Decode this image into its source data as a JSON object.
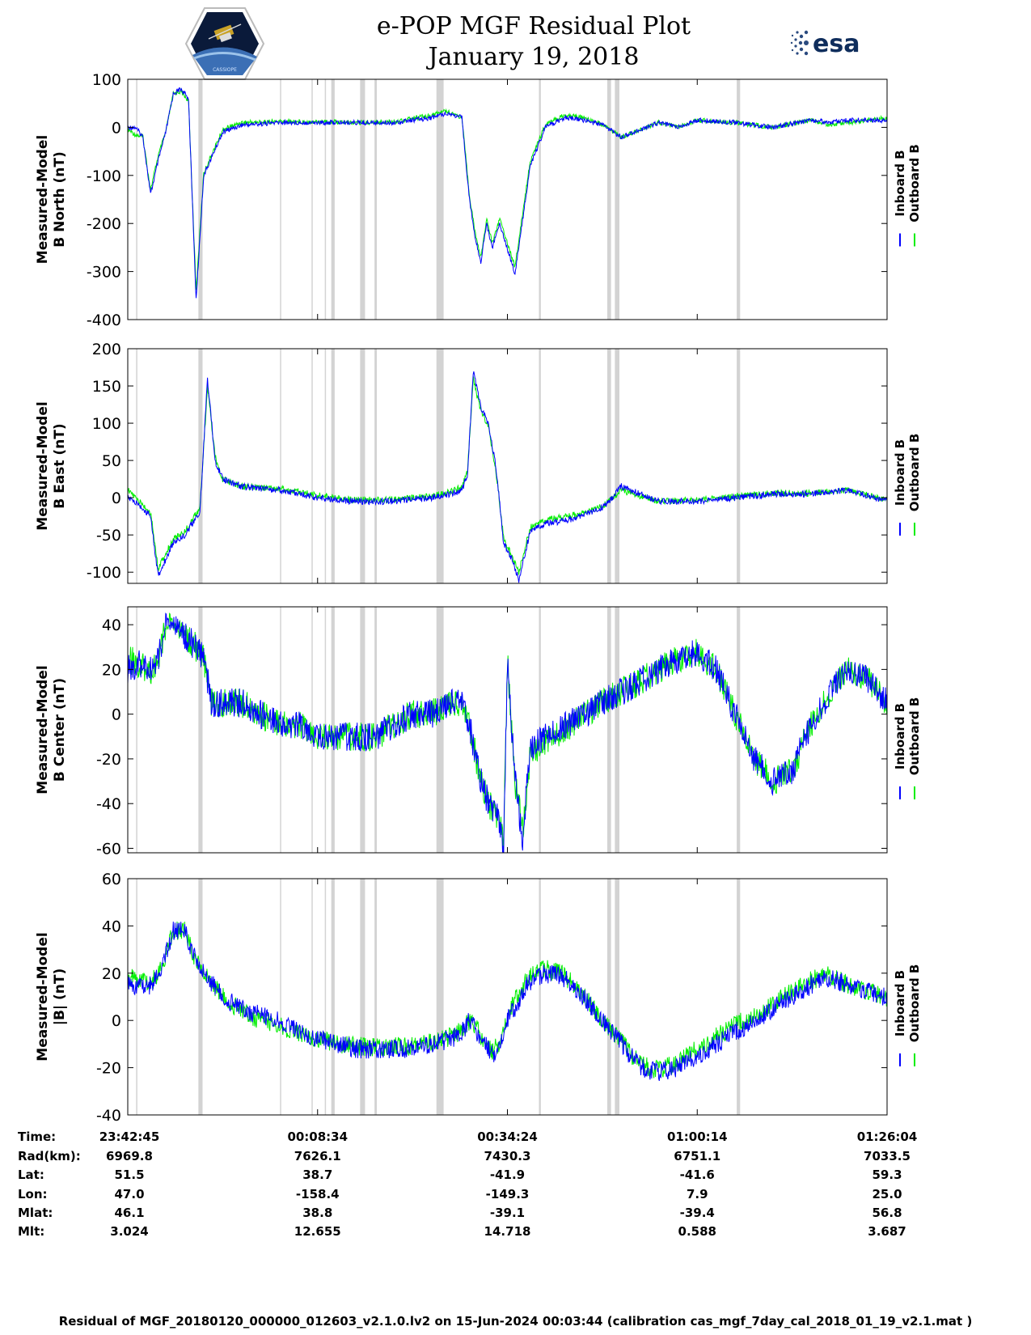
{
  "header": {
    "title": "e-POP MGF Residual Plot",
    "date": "January 19, 2018",
    "logo_left": "CASSIOPE",
    "logo_right": "esa"
  },
  "colors": {
    "inboard": "#0000ff",
    "outboard": "#00ee00",
    "gap": "#d3d3d3"
  },
  "chart_data": [
    {
      "type": "line",
      "ylabel": [
        "Measured-Model",
        "B North (nT)"
      ],
      "ylim": [
        -400,
        100
      ],
      "yticks": [
        100,
        0,
        -100,
        -200,
        -300,
        -400
      ],
      "legend": [
        "Inboard B",
        "Outboard B"
      ],
      "series": [
        {
          "name": "Inboard B",
          "color": "#0000ff",
          "x": [
            0,
            2,
            4,
            6,
            8,
            10,
            12,
            14,
            16,
            18,
            20,
            25,
            30,
            40,
            50,
            60,
            70,
            80,
            84,
            88,
            90,
            91.5,
            93,
            94.5,
            96,
            98,
            102,
            106,
            110,
            115,
            120,
            125,
            130,
            140,
            145,
            150,
            160,
            170,
            180,
            185,
            190,
            200
          ],
          "y": [
            0,
            0,
            -20,
            -140,
            -70,
            -10,
            70,
            80,
            60,
            -360,
            -100,
            -10,
            5,
            10,
            10,
            10,
            10,
            20,
            30,
            20,
            -150,
            -230,
            -280,
            -200,
            -250,
            -200,
            -305,
            -80,
            0,
            20,
            15,
            5,
            -20,
            10,
            0,
            15,
            10,
            0,
            15,
            10,
            15,
            15
          ]
        },
        {
          "name": "Outboard B",
          "color": "#00ee00",
          "x": [
            0,
            2,
            4,
            6,
            8,
            10,
            12,
            14,
            16,
            18,
            20,
            25,
            30,
            40,
            50,
            60,
            70,
            80,
            84,
            88,
            90,
            91.5,
            93,
            94.5,
            96,
            98,
            102,
            106,
            110,
            115,
            120,
            125,
            130,
            140,
            145,
            150,
            160,
            170,
            180,
            185,
            190,
            200
          ],
          "y": [
            -5,
            -15,
            -20,
            -130,
            -60,
            -10,
            70,
            75,
            55,
            -340,
            -95,
            -5,
            10,
            12,
            12,
            10,
            12,
            25,
            35,
            20,
            -140,
            -220,
            -270,
            -190,
            -240,
            -190,
            -290,
            -70,
            5,
            25,
            20,
            5,
            -20,
            10,
            0,
            15,
            10,
            0,
            15,
            5,
            10,
            20
          ]
        }
      ]
    },
    {
      "type": "line",
      "ylabel": [
        "Measured-Model",
        "B East (nT)"
      ],
      "ylim": [
        -115,
        200
      ],
      "yticks": [
        200,
        150,
        100,
        50,
        0,
        -50,
        -100
      ],
      "legend": [
        "Inboard B",
        "Outboard B"
      ],
      "series": [
        {
          "name": "Inboard B",
          "color": "#0000ff",
          "x": [
            0,
            3,
            6,
            8,
            12,
            15,
            19,
            21,
            23,
            25,
            30,
            40,
            50,
            60,
            70,
            80,
            85,
            88,
            89.5,
            91,
            93,
            95,
            97,
            99,
            101,
            103,
            106,
            110,
            116,
            122,
            126,
            130,
            140,
            150,
            160,
            170,
            180,
            190,
            200
          ],
          "y": [
            0,
            -10,
            -25,
            -105,
            -60,
            -50,
            -20,
            160,
            50,
            25,
            15,
            10,
            0,
            -5,
            -5,
            0,
            5,
            10,
            30,
            170,
            120,
            100,
            40,
            -60,
            -80,
            -110,
            -45,
            -35,
            -30,
            -20,
            -10,
            15,
            -5,
            -5,
            0,
            5,
            5,
            10,
            -5
          ]
        },
        {
          "name": "Outboard B",
          "color": "#00ee00",
          "x": [
            0,
            3,
            6,
            8,
            12,
            15,
            19,
            21,
            23,
            25,
            30,
            40,
            50,
            60,
            70,
            80,
            85,
            88,
            89.5,
            91,
            93,
            95,
            97,
            99,
            101,
            103,
            106,
            110,
            116,
            122,
            126,
            130,
            140,
            150,
            160,
            170,
            180,
            190,
            200
          ],
          "y": [
            10,
            -5,
            -20,
            -95,
            -55,
            -45,
            -15,
            150,
            55,
            25,
            15,
            12,
            3,
            -3,
            -3,
            2,
            8,
            15,
            35,
            160,
            115,
            95,
            35,
            -55,
            -75,
            -100,
            -40,
            -30,
            -25,
            -18,
            -8,
            10,
            -5,
            -3,
            2,
            6,
            6,
            10,
            -3
          ]
        }
      ]
    },
    {
      "type": "line",
      "ylabel": [
        "Measured-Model",
        "B Center (nT)"
      ],
      "ylim": [
        -62,
        48
      ],
      "yticks": [
        40,
        20,
        0,
        -20,
        -40,
        -60
      ],
      "legend": [
        "Inboard B",
        "Outboard B"
      ],
      "series": [
        {
          "name": "Inboard B",
          "color": "#0000ff",
          "x": [
            0,
            3,
            6,
            8,
            10,
            12,
            15,
            18,
            20,
            22,
            25,
            30,
            35,
            40,
            45,
            50,
            55,
            60,
            65,
            70,
            75,
            80,
            85,
            88,
            90,
            93,
            95,
            97,
            98,
            99,
            100,
            102,
            104,
            106,
            110,
            115,
            120,
            125,
            130,
            135,
            140,
            145,
            150,
            155,
            160,
            165,
            170,
            175,
            180,
            185,
            190,
            195,
            200
          ],
          "y": [
            20,
            22,
            20,
            25,
            40,
            40,
            35,
            30,
            25,
            5,
            5,
            5,
            0,
            -5,
            -5,
            -10,
            -10,
            -10,
            -10,
            -5,
            0,
            0,
            5,
            5,
            -5,
            -30,
            -40,
            -45,
            -50,
            -60,
            25,
            -30,
            -55,
            -15,
            -10,
            -5,
            0,
            5,
            10,
            15,
            20,
            25,
            28,
            20,
            0,
            -20,
            -30,
            -25,
            -5,
            10,
            20,
            15,
            5
          ]
        },
        {
          "name": "Outboard B",
          "color": "#00ee00",
          "x": [
            0,
            3,
            6,
            8,
            10,
            12,
            15,
            18,
            20,
            22,
            25,
            30,
            35,
            40,
            45,
            50,
            55,
            60,
            65,
            70,
            75,
            80,
            85,
            88,
            90,
            93,
            95,
            97,
            98,
            99,
            100,
            102,
            104,
            106,
            110,
            115,
            120,
            125,
            130,
            135,
            140,
            145,
            150,
            155,
            160,
            165,
            170,
            175,
            180,
            185,
            190,
            195,
            200
          ],
          "y": [
            25,
            22,
            18,
            24,
            40,
            40,
            35,
            30,
            25,
            5,
            5,
            5,
            0,
            -5,
            -5,
            -10,
            -10,
            -10,
            -10,
            -5,
            0,
            0,
            5,
            3,
            -5,
            -30,
            -40,
            -45,
            -50,
            -58,
            25,
            -30,
            -52,
            -18,
            -12,
            -7,
            0,
            5,
            10,
            15,
            20,
            25,
            28,
            20,
            0,
            -20,
            -30,
            -25,
            -5,
            10,
            20,
            15,
            5
          ]
        }
      ]
    },
    {
      "type": "line",
      "ylabel": [
        "Measured-Model",
        "|B| (nT)"
      ],
      "ylim": [
        -40,
        60
      ],
      "yticks": [
        60,
        40,
        20,
        0,
        -20,
        -40
      ],
      "legend": [
        "Inboard B",
        "Outboard B"
      ],
      "series": [
        {
          "name": "Inboard B",
          "color": "#0000ff",
          "x": [
            0,
            3,
            6,
            8,
            10,
            12,
            15,
            18,
            20,
            25,
            30,
            35,
            40,
            45,
            50,
            55,
            60,
            65,
            70,
            75,
            80,
            85,
            88,
            90,
            92,
            94,
            96,
            98,
            100,
            102,
            105,
            110,
            115,
            120,
            125,
            130,
            135,
            140,
            145,
            150,
            155,
            160,
            165,
            170,
            175,
            180,
            185,
            190,
            195,
            200
          ],
          "y": [
            15,
            15,
            15,
            20,
            28,
            38,
            38,
            25,
            20,
            10,
            5,
            2,
            0,
            -5,
            -8,
            -10,
            -12,
            -12,
            -12,
            -12,
            -10,
            -8,
            -5,
            0,
            -5,
            -10,
            -15,
            -10,
            0,
            5,
            15,
            20,
            18,
            10,
            0,
            -10,
            -20,
            -22,
            -20,
            -15,
            -10,
            -5,
            0,
            5,
            10,
            15,
            18,
            15,
            12,
            10
          ]
        },
        {
          "name": "Outboard B",
          "color": "#00ee00",
          "x": [
            0,
            3,
            6,
            8,
            10,
            12,
            15,
            18,
            20,
            25,
            30,
            35,
            40,
            45,
            50,
            55,
            60,
            65,
            70,
            75,
            80,
            85,
            88,
            90,
            92,
            94,
            96,
            98,
            100,
            102,
            105,
            110,
            115,
            120,
            125,
            130,
            135,
            140,
            145,
            150,
            155,
            160,
            165,
            170,
            175,
            180,
            185,
            190,
            195,
            200
          ],
          "y": [
            18,
            18,
            16,
            20,
            28,
            38,
            38,
            25,
            20,
            10,
            4,
            0,
            -2,
            -6,
            -8,
            -10,
            -11,
            -11,
            -11,
            -11,
            -9,
            -7,
            -4,
            0,
            -4,
            -9,
            -14,
            -9,
            2,
            8,
            18,
            22,
            19,
            11,
            0,
            -9,
            -19,
            -21,
            -18,
            -12,
            -7,
            -2,
            2,
            7,
            12,
            17,
            19,
            15,
            12,
            10
          ]
        }
      ]
    }
  ],
  "gaps": [
    [
      2.2,
      2.5
    ],
    [
      18.6,
      19.7
    ],
    [
      40.1,
      40.4
    ],
    [
      48.4,
      48.7
    ],
    [
      51.9,
      52.2
    ],
    [
      53.6,
      54.5
    ],
    [
      61.2,
      62.5
    ],
    [
      65.0,
      65.6
    ],
    [
      81.3,
      83.2
    ],
    [
      108.3,
      108.8
    ],
    [
      126.3,
      127.3
    ],
    [
      128.3,
      129.5
    ],
    [
      160.4,
      161.3
    ]
  ],
  "x_axis": {
    "range": [
      0,
      200
    ],
    "tick_positions": [
      50,
      100,
      150
    ]
  },
  "ephemeris": {
    "labels": [
      "Time:",
      "Rad(km):",
      "Lat:",
      "Lon:",
      "Mlat:",
      "Mlt:"
    ],
    "columns": [
      {
        "x": 0,
        "values": [
          "23:42:45",
          "6969.8",
          "51.5",
          "47.0",
          "46.1",
          "3.024"
        ]
      },
      {
        "x": 50,
        "values": [
          "00:08:34",
          "7626.1",
          "38.7",
          "-158.4",
          "38.8",
          "12.655"
        ]
      },
      {
        "x": 100,
        "values": [
          "00:34:24",
          "7430.3",
          "-41.9",
          "-149.3",
          "-39.1",
          "14.718"
        ]
      },
      {
        "x": 150,
        "values": [
          "01:00:14",
          "6751.1",
          "-41.6",
          "7.9",
          "-39.4",
          "0.588"
        ]
      },
      {
        "x": 200,
        "values": [
          "01:26:04",
          "7033.5",
          "59.3",
          "25.0",
          "56.8",
          "3.687"
        ]
      }
    ]
  },
  "footer": "Residual of MGF_20180120_000000_012603_v2.1.0.lv2 on 15-Jun-2024 00:03:44 (calibration cas_mgf_7day_cal_2018_01_19_v2.1.mat )"
}
